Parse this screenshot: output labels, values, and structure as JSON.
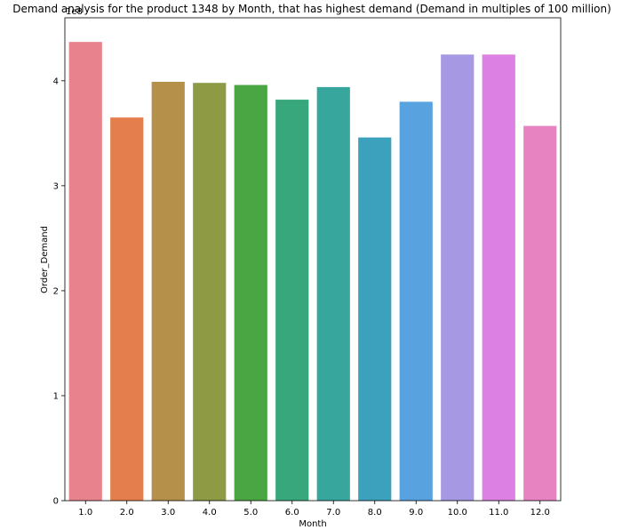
{
  "chart_data": {
    "type": "bar",
    "title": "Demand analysis for the product 1348 by Month, that has highest demand (Demand in multiples of 100 million)",
    "xlabel": "Month",
    "ylabel": "Order_Demand",
    "y_offset_label": "1e8",
    "categories": [
      "1.0",
      "2.0",
      "3.0",
      "4.0",
      "5.0",
      "6.0",
      "7.0",
      "8.0",
      "9.0",
      "10.0",
      "11.0",
      "12.0"
    ],
    "values": [
      4.37,
      3.65,
      3.99,
      3.98,
      3.96,
      3.82,
      3.94,
      3.46,
      3.8,
      4.25,
      4.25,
      3.57
    ],
    "yticks": [
      0,
      1,
      2,
      3,
      4
    ],
    "ylim": [
      0,
      4.6
    ],
    "grid": false,
    "legend": "none",
    "colors": [
      "#e8838e",
      "#e47f4d",
      "#b5904a",
      "#8f9a44",
      "#4aa642",
      "#38a77c",
      "#37a69c",
      "#3ba1bc",
      "#57a2df",
      "#a798e3",
      "#dc80e3",
      "#e883c1"
    ],
    "axis_color": "#000000"
  }
}
